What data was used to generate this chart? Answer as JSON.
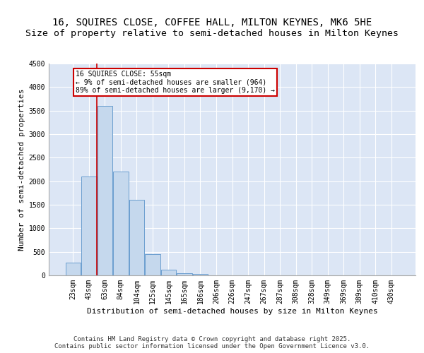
{
  "title1": "16, SQUIRES CLOSE, COFFEE HALL, MILTON KEYNES, MK6 5HE",
  "title2": "Size of property relative to semi-detached houses in Milton Keynes",
  "xlabel": "Distribution of semi-detached houses by size in Milton Keynes",
  "ylabel": "Number of semi-detached properties",
  "categories": [
    "23sqm",
    "43sqm",
    "63sqm",
    "84sqm",
    "104sqm",
    "125sqm",
    "145sqm",
    "165sqm",
    "186sqm",
    "206sqm",
    "226sqm",
    "247sqm",
    "267sqm",
    "287sqm",
    "308sqm",
    "328sqm",
    "349sqm",
    "369sqm",
    "389sqm",
    "410sqm",
    "430sqm"
  ],
  "values": [
    270,
    2100,
    3600,
    2200,
    1600,
    450,
    120,
    50,
    30,
    0,
    0,
    0,
    0,
    0,
    0,
    0,
    0,
    0,
    0,
    0,
    0
  ],
  "bar_color": "#c5d8ed",
  "bar_edge_color": "#6b9fcf",
  "background_color": "#dce6f5",
  "grid_color": "#ffffff",
  "vline_x_index": 1.5,
  "vline_color": "#cc0000",
  "annotation_title": "16 SQUIRES CLOSE: 55sqm",
  "annotation_line1": "← 9% of semi-detached houses are smaller (964)",
  "annotation_line2": "89% of semi-detached houses are larger (9,170) →",
  "annotation_box_color": "#ffffff",
  "annotation_box_edge": "#cc0000",
  "ylim": [
    0,
    4500
  ],
  "yticks": [
    0,
    500,
    1000,
    1500,
    2000,
    2500,
    3000,
    3500,
    4000,
    4500
  ],
  "footer1": "Contains HM Land Registry data © Crown copyright and database right 2025.",
  "footer2": "Contains public sector information licensed under the Open Government Licence v3.0.",
  "title_fontsize": 10,
  "axis_label_fontsize": 8,
  "tick_fontsize": 7,
  "annotation_fontsize": 7,
  "footer_fontsize": 6.5
}
